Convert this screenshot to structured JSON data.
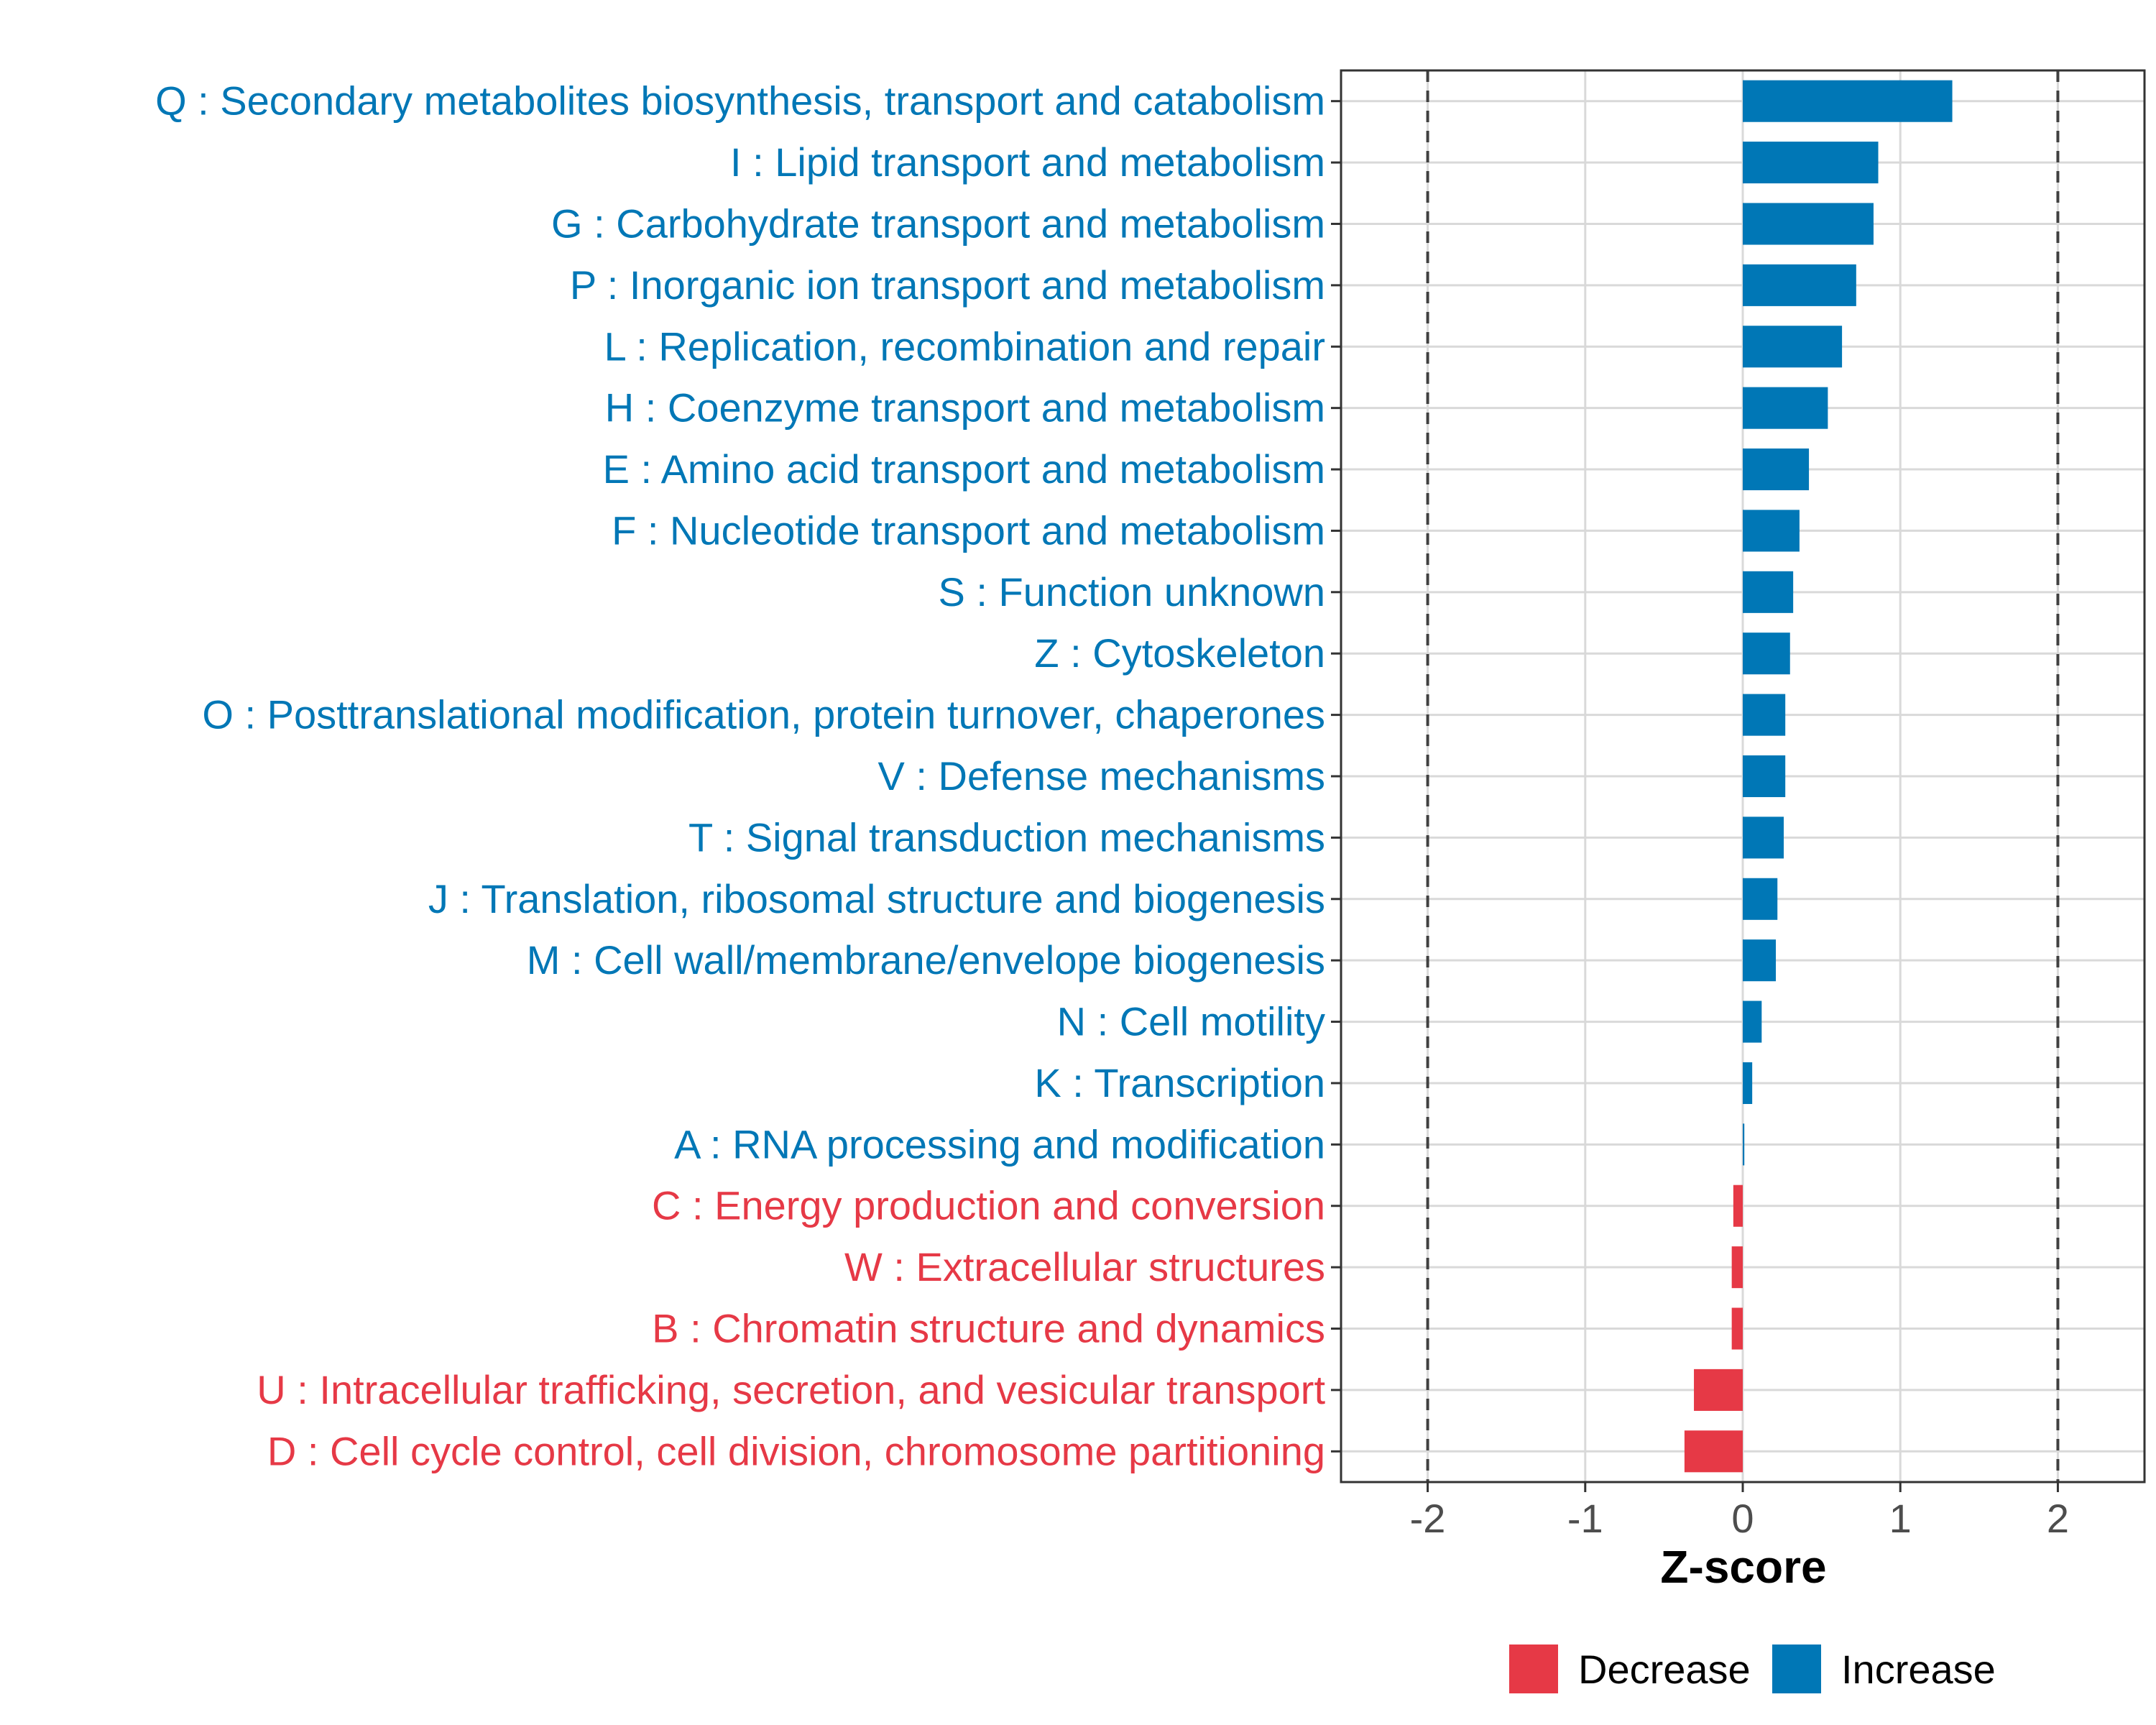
{
  "chart_data": {
    "type": "bar",
    "orientation": "horizontal",
    "xlabel": "Z-score",
    "xlim": [
      -2.55,
      2.55
    ],
    "xticks": [
      -2,
      -1,
      0,
      1,
      2
    ],
    "xtick_labels": [
      "-2",
      "-1",
      "0",
      "1",
      "2"
    ],
    "reference_lines": [
      -2,
      2
    ],
    "grid": true,
    "legend_position": "bottom",
    "colors": {
      "Decrease": "#E63946",
      "Increase": "#0077B6"
    },
    "legend": [
      {
        "name": "Decrease",
        "label": "Decrease"
      },
      {
        "name": "Increase",
        "label": "Increase"
      }
    ],
    "categories": [
      "Q : Secondary metabolites biosynthesis, transport and catabolism",
      "I : Lipid transport and metabolism",
      "G : Carbohydrate transport and metabolism",
      "P : Inorganic ion transport and metabolism",
      "L : Replication, recombination and repair",
      "H : Coenzyme transport and metabolism",
      "E : Amino acid transport and metabolism",
      "F : Nucleotide transport and metabolism",
      "S : Function unknown",
      "Z : Cytoskeleton",
      "O : Posttranslational modification, protein turnover, chaperones",
      "V : Defense mechanisms",
      "T : Signal transduction mechanisms",
      "J : Translation, ribosomal structure and biogenesis",
      "M : Cell wall/membrane/envelope biogenesis",
      "N : Cell motility",
      "K : Transcription",
      "A : RNA processing and modification",
      "C : Energy production and conversion",
      "W : Extracellular structures",
      "B : Chromatin structure and dynamics",
      "U : Intracellular trafficking, secretion, and vesicular transport",
      "D : Cell cycle control, cell division, chromosome partitioning"
    ],
    "values": [
      1.33,
      0.86,
      0.83,
      0.72,
      0.63,
      0.54,
      0.42,
      0.36,
      0.32,
      0.3,
      0.27,
      0.27,
      0.26,
      0.22,
      0.21,
      0.12,
      0.06,
      0.01,
      -0.06,
      -0.07,
      -0.07,
      -0.31,
      -0.37
    ],
    "groups": [
      "Increase",
      "Increase",
      "Increase",
      "Increase",
      "Increase",
      "Increase",
      "Increase",
      "Increase",
      "Increase",
      "Increase",
      "Increase",
      "Increase",
      "Increase",
      "Increase",
      "Increase",
      "Increase",
      "Increase",
      "Increase",
      "Decrease",
      "Decrease",
      "Decrease",
      "Decrease",
      "Decrease"
    ]
  }
}
